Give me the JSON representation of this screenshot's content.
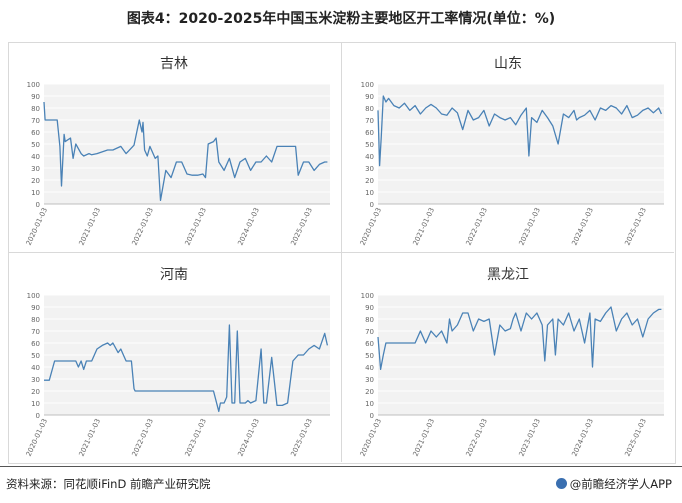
{
  "title": "图表4：2020-2025年中国玉米淀粉主要地区开工率情况(单位：%)",
  "source": "资料来源：同花顺iFinD 前瞻产业研究院",
  "brand": "@前瞻经济学人APP",
  "colors": {
    "line": "#4a82b6",
    "plot_bg": "#f2f2f2",
    "grid": "#ffffff"
  },
  "chart_data": [
    {
      "type": "line",
      "title": "吉林",
      "ylim": [
        0,
        100
      ],
      "yticks": [
        0,
        10,
        20,
        30,
        40,
        50,
        60,
        70,
        80,
        90,
        100
      ],
      "xticks": [
        "2020-01-03",
        "2021-01-03",
        "2022-01-03",
        "2023-01-03",
        "2024-01-03",
        "2025-01-03"
      ],
      "series": [
        {
          "x": [
            2020.0,
            2020.02,
            2020.05,
            2020.25,
            2020.3,
            2020.33,
            2020.38,
            2020.4,
            2020.5,
            2020.55,
            2020.6,
            2020.7,
            2020.75,
            2020.85,
            2020.9,
            2021.0,
            2021.2,
            2021.3,
            2021.45,
            2021.55,
            2021.7,
            2021.8,
            2021.85,
            2021.87,
            2021.9,
            2021.95,
            2022.0,
            2022.1,
            2022.15,
            2022.2,
            2022.3,
            2022.4,
            2022.5,
            2022.55,
            2022.6,
            2022.7,
            2022.8,
            2022.9,
            2023.0,
            2023.05,
            2023.1,
            2023.2,
            2023.25,
            2023.3,
            2023.4,
            2023.5,
            2023.6,
            2023.7,
            2023.8,
            2023.9,
            2024.0,
            2024.1,
            2024.2,
            2024.3,
            2024.4,
            2024.5,
            2024.6,
            2024.7,
            2024.75,
            2024.8,
            2024.9,
            2025.0,
            2025.1,
            2025.2,
            2025.3,
            2025.35
          ],
          "y": [
            85,
            70,
            70,
            70,
            48,
            15,
            58,
            52,
            55,
            38,
            50,
            42,
            40,
            42,
            41,
            42,
            45,
            45,
            48,
            42,
            49,
            70,
            60,
            68,
            45,
            40,
            48,
            38,
            40,
            3,
            28,
            22,
            35,
            35,
            35,
            25,
            24,
            24,
            25,
            22,
            50,
            52,
            55,
            35,
            28,
            38,
            22,
            35,
            38,
            28,
            35,
            35,
            40,
            35,
            48,
            48,
            48,
            48,
            48,
            24,
            35,
            35,
            28,
            33,
            35,
            35
          ]
        }
      ]
    },
    {
      "type": "line",
      "title": "山东",
      "ylim": [
        0,
        100
      ],
      "yticks": [
        0,
        10,
        20,
        30,
        40,
        50,
        60,
        70,
        80,
        90,
        100
      ],
      "xticks": [
        "2020-01-03",
        "2021-01-03",
        "2022-01-03",
        "2023-01-03",
        "2024-01-03",
        "2025-01-03"
      ],
      "series": [
        {
          "x": [
            2020.0,
            2020.03,
            2020.06,
            2020.1,
            2020.15,
            2020.2,
            2020.3,
            2020.4,
            2020.5,
            2020.6,
            2020.7,
            2020.8,
            2020.9,
            2021.0,
            2021.1,
            2021.2,
            2021.3,
            2021.4,
            2021.5,
            2021.6,
            2021.7,
            2021.8,
            2021.9,
            2022.0,
            2022.1,
            2022.2,
            2022.3,
            2022.4,
            2022.5,
            2022.6,
            2022.7,
            2022.8,
            2022.85,
            2022.9,
            2023.0,
            2023.1,
            2023.2,
            2023.3,
            2023.4,
            2023.5,
            2023.6,
            2023.7,
            2023.75,
            2023.8,
            2023.9,
            2024.0,
            2024.1,
            2024.2,
            2024.3,
            2024.4,
            2024.5,
            2024.6,
            2024.7,
            2024.8,
            2024.9,
            2025.0,
            2025.1,
            2025.2,
            2025.3,
            2025.35
          ],
          "y": [
            78,
            32,
            55,
            90,
            85,
            88,
            82,
            80,
            84,
            78,
            82,
            75,
            80,
            83,
            80,
            75,
            74,
            80,
            76,
            62,
            78,
            70,
            72,
            78,
            65,
            75,
            72,
            70,
            72,
            66,
            74,
            80,
            40,
            72,
            68,
            78,
            72,
            65,
            50,
            75,
            72,
            78,
            70,
            72,
            74,
            78,
            70,
            80,
            78,
            82,
            80,
            75,
            82,
            72,
            74,
            78,
            80,
            76,
            80,
            75
          ]
        }
      ]
    },
    {
      "type": "line",
      "title": "河南",
      "ylim": [
        0,
        100
      ],
      "yticks": [
        0,
        10,
        20,
        30,
        40,
        50,
        60,
        70,
        80,
        90,
        100
      ],
      "xticks": [
        "2020-01-03",
        "2021-01-03",
        "2022-01-03",
        "2023-01-03",
        "2024-01-03",
        "2025-01-03"
      ],
      "series": [
        {
          "x": [
            2020.0,
            2020.1,
            2020.2,
            2020.3,
            2020.6,
            2020.65,
            2020.7,
            2020.75,
            2020.8,
            2020.9,
            2021.0,
            2021.1,
            2021.2,
            2021.25,
            2021.3,
            2021.4,
            2021.45,
            2021.5,
            2021.55,
            2021.6,
            2021.65,
            2021.7,
            2021.72,
            2021.8,
            2021.85,
            2022.0,
            2022.5,
            2023.0,
            2023.2,
            2023.3,
            2023.33,
            2023.4,
            2023.45,
            2023.5,
            2023.55,
            2023.6,
            2023.65,
            2023.7,
            2023.8,
            2023.85,
            2023.9,
            2024.0,
            2024.1,
            2024.15,
            2024.2,
            2024.3,
            2024.4,
            2024.5,
            2024.6,
            2024.7,
            2024.8,
            2024.9,
            2025.0,
            2025.1,
            2025.2,
            2025.3,
            2025.35
          ],
          "y": [
            29,
            29,
            45,
            45,
            45,
            40,
            45,
            38,
            45,
            45,
            55,
            58,
            60,
            58,
            60,
            52,
            55,
            50,
            45,
            45,
            45,
            22,
            20,
            20,
            20,
            20,
            20,
            20,
            20,
            3,
            10,
            10,
            15,
            75,
            10,
            10,
            70,
            10,
            10,
            12,
            10,
            12,
            55,
            10,
            10,
            48,
            8,
            8,
            10,
            45,
            50,
            50,
            55,
            58,
            55,
            68,
            58
          ]
        }
      ]
    },
    {
      "type": "line",
      "title": "黑龙江",
      "ylim": [
        0,
        100
      ],
      "yticks": [
        0,
        10,
        20,
        30,
        40,
        50,
        60,
        70,
        80,
        90,
        100
      ],
      "xticks": [
        "2020-01-03",
        "2021-01-03",
        "2022-01-03",
        "2023-01-03",
        "2024-01-03",
        "2025-01-03"
      ],
      "series": [
        {
          "x": [
            2020.0,
            2020.05,
            2020.1,
            2020.15,
            2020.2,
            2020.3,
            2020.5,
            2020.7,
            2020.8,
            2020.9,
            2021.0,
            2021.1,
            2021.2,
            2021.3,
            2021.35,
            2021.4,
            2021.5,
            2021.6,
            2021.7,
            2021.8,
            2021.9,
            2022.0,
            2022.1,
            2022.2,
            2022.3,
            2022.4,
            2022.5,
            2022.55,
            2022.6,
            2022.7,
            2022.8,
            2022.9,
            2023.0,
            2023.1,
            2023.15,
            2023.2,
            2023.3,
            2023.35,
            2023.4,
            2023.5,
            2023.6,
            2023.7,
            2023.8,
            2023.9,
            2024.0,
            2024.05,
            2024.1,
            2024.2,
            2024.3,
            2024.4,
            2024.5,
            2024.6,
            2024.7,
            2024.8,
            2024.9,
            2025.0,
            2025.1,
            2025.2,
            2025.3,
            2025.35
          ],
          "y": [
            65,
            38,
            50,
            60,
            60,
            60,
            60,
            60,
            70,
            60,
            70,
            65,
            70,
            60,
            80,
            70,
            75,
            85,
            85,
            70,
            80,
            78,
            80,
            50,
            75,
            70,
            72,
            80,
            85,
            70,
            85,
            80,
            85,
            75,
            45,
            75,
            80,
            50,
            80,
            75,
            85,
            70,
            80,
            60,
            85,
            40,
            80,
            78,
            85,
            90,
            70,
            80,
            85,
            75,
            80,
            65,
            80,
            85,
            88,
            88
          ]
        }
      ]
    }
  ]
}
